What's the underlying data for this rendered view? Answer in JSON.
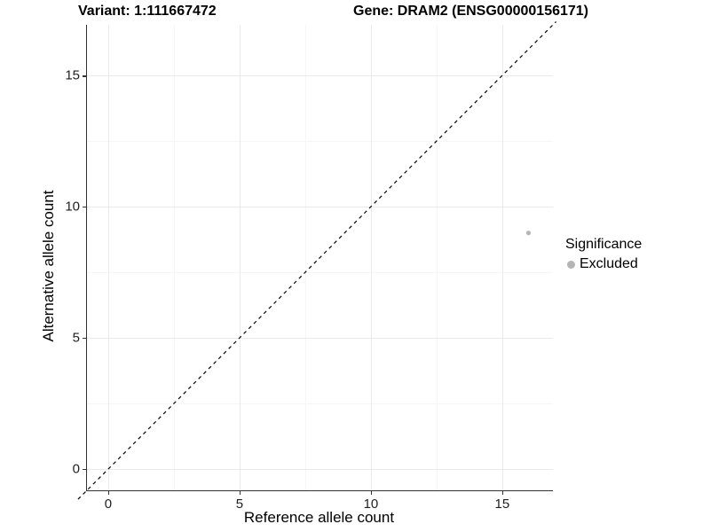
{
  "title": {
    "variant_label": "Variant: 1:111667472",
    "gene_label": "Gene: DRAM2 (ENSG00000156171)"
  },
  "axes": {
    "x": {
      "label": "Reference allele count",
      "tick_labels": [
        "0",
        "5",
        "10",
        "15"
      ]
    },
    "y": {
      "label": "Alternative allele count",
      "tick_labels": [
        "0",
        "5",
        "10",
        "15"
      ]
    }
  },
  "legend": {
    "title": "Significance",
    "items": [
      {
        "label": "Excluded",
        "color": "#b5b5b5"
      }
    ]
  },
  "chart_data": {
    "type": "scatter",
    "title": "Variant: 1:111667472  Gene: DRAM2 (ENSG00000156171)",
    "xlabel": "Reference allele count",
    "ylabel": "Alternative allele count",
    "xlim": [
      -0.81,
      16.93
    ],
    "ylim": [
      -0.81,
      16.93
    ],
    "xticks": [
      0,
      5,
      10,
      15
    ],
    "yticks": [
      0,
      5,
      10,
      15
    ],
    "xticks_minor": [
      2.5,
      7.5,
      12.5
    ],
    "yticks_minor": [
      2.5,
      7.5,
      12.5
    ],
    "grid": "major+minor",
    "legend_position": "right",
    "series": [
      {
        "name": "Excluded",
        "color": "#b5b5b5",
        "points": [
          {
            "x": 16,
            "y": 9
          }
        ]
      }
    ],
    "reference_line": {
      "equation": "y = x",
      "style": "dashed",
      "color": "#000000"
    }
  },
  "colors": {
    "axis_line": "#333333",
    "grid_major": "#ebebeb",
    "grid_minor": "#f6f6f6",
    "point": "#b5b5b5"
  }
}
